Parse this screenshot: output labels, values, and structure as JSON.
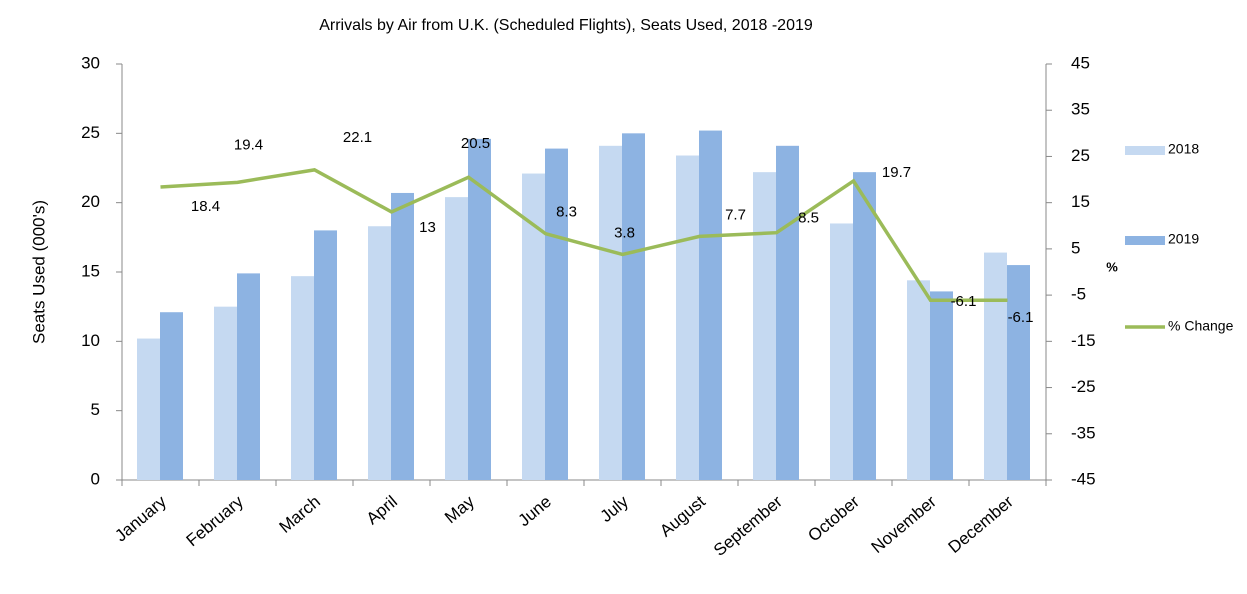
{
  "chart_data": {
    "type": "bar_line",
    "title": "Arrivals by Air from U.K. (Scheduled Flights), Seats Used, 2018 -2019",
    "y_label": "Seats Used (000's)",
    "y2_label": "%",
    "categories": [
      "January",
      "February",
      "March",
      "April",
      "May",
      "June",
      "July",
      "August",
      "September",
      "October",
      "November",
      "December"
    ],
    "series": [
      {
        "name": "2018",
        "type": "bar",
        "color": "#c5d9f1",
        "values": [
          10.2,
          12.5,
          14.7,
          18.3,
          20.4,
          22.1,
          24.1,
          23.4,
          22.2,
          18.5,
          14.4,
          16.4
        ]
      },
      {
        "name": "2019",
        "type": "bar",
        "color": "#8db3e2",
        "values": [
          12.1,
          14.9,
          18.0,
          20.7,
          24.6,
          23.9,
          25.0,
          25.2,
          24.1,
          22.2,
          13.6,
          15.5
        ]
      },
      {
        "name": "% Change",
        "type": "line",
        "axis": "y2",
        "color": "#9bbb59",
        "values": [
          18.4,
          19.4,
          22.1,
          13.0,
          20.5,
          8.3,
          3.8,
          7.7,
          8.5,
          19.7,
          -6.1,
          -6.1
        ]
      }
    ],
    "ylim": [
      0,
      30
    ],
    "yticks": [
      0,
      5,
      10,
      15,
      20,
      25,
      30
    ],
    "y2lim": [
      -45,
      45
    ],
    "y2ticks": [
      -45,
      -35,
      -25,
      -15,
      -5,
      5,
      15,
      25,
      35,
      45
    ],
    "legend": "right"
  }
}
